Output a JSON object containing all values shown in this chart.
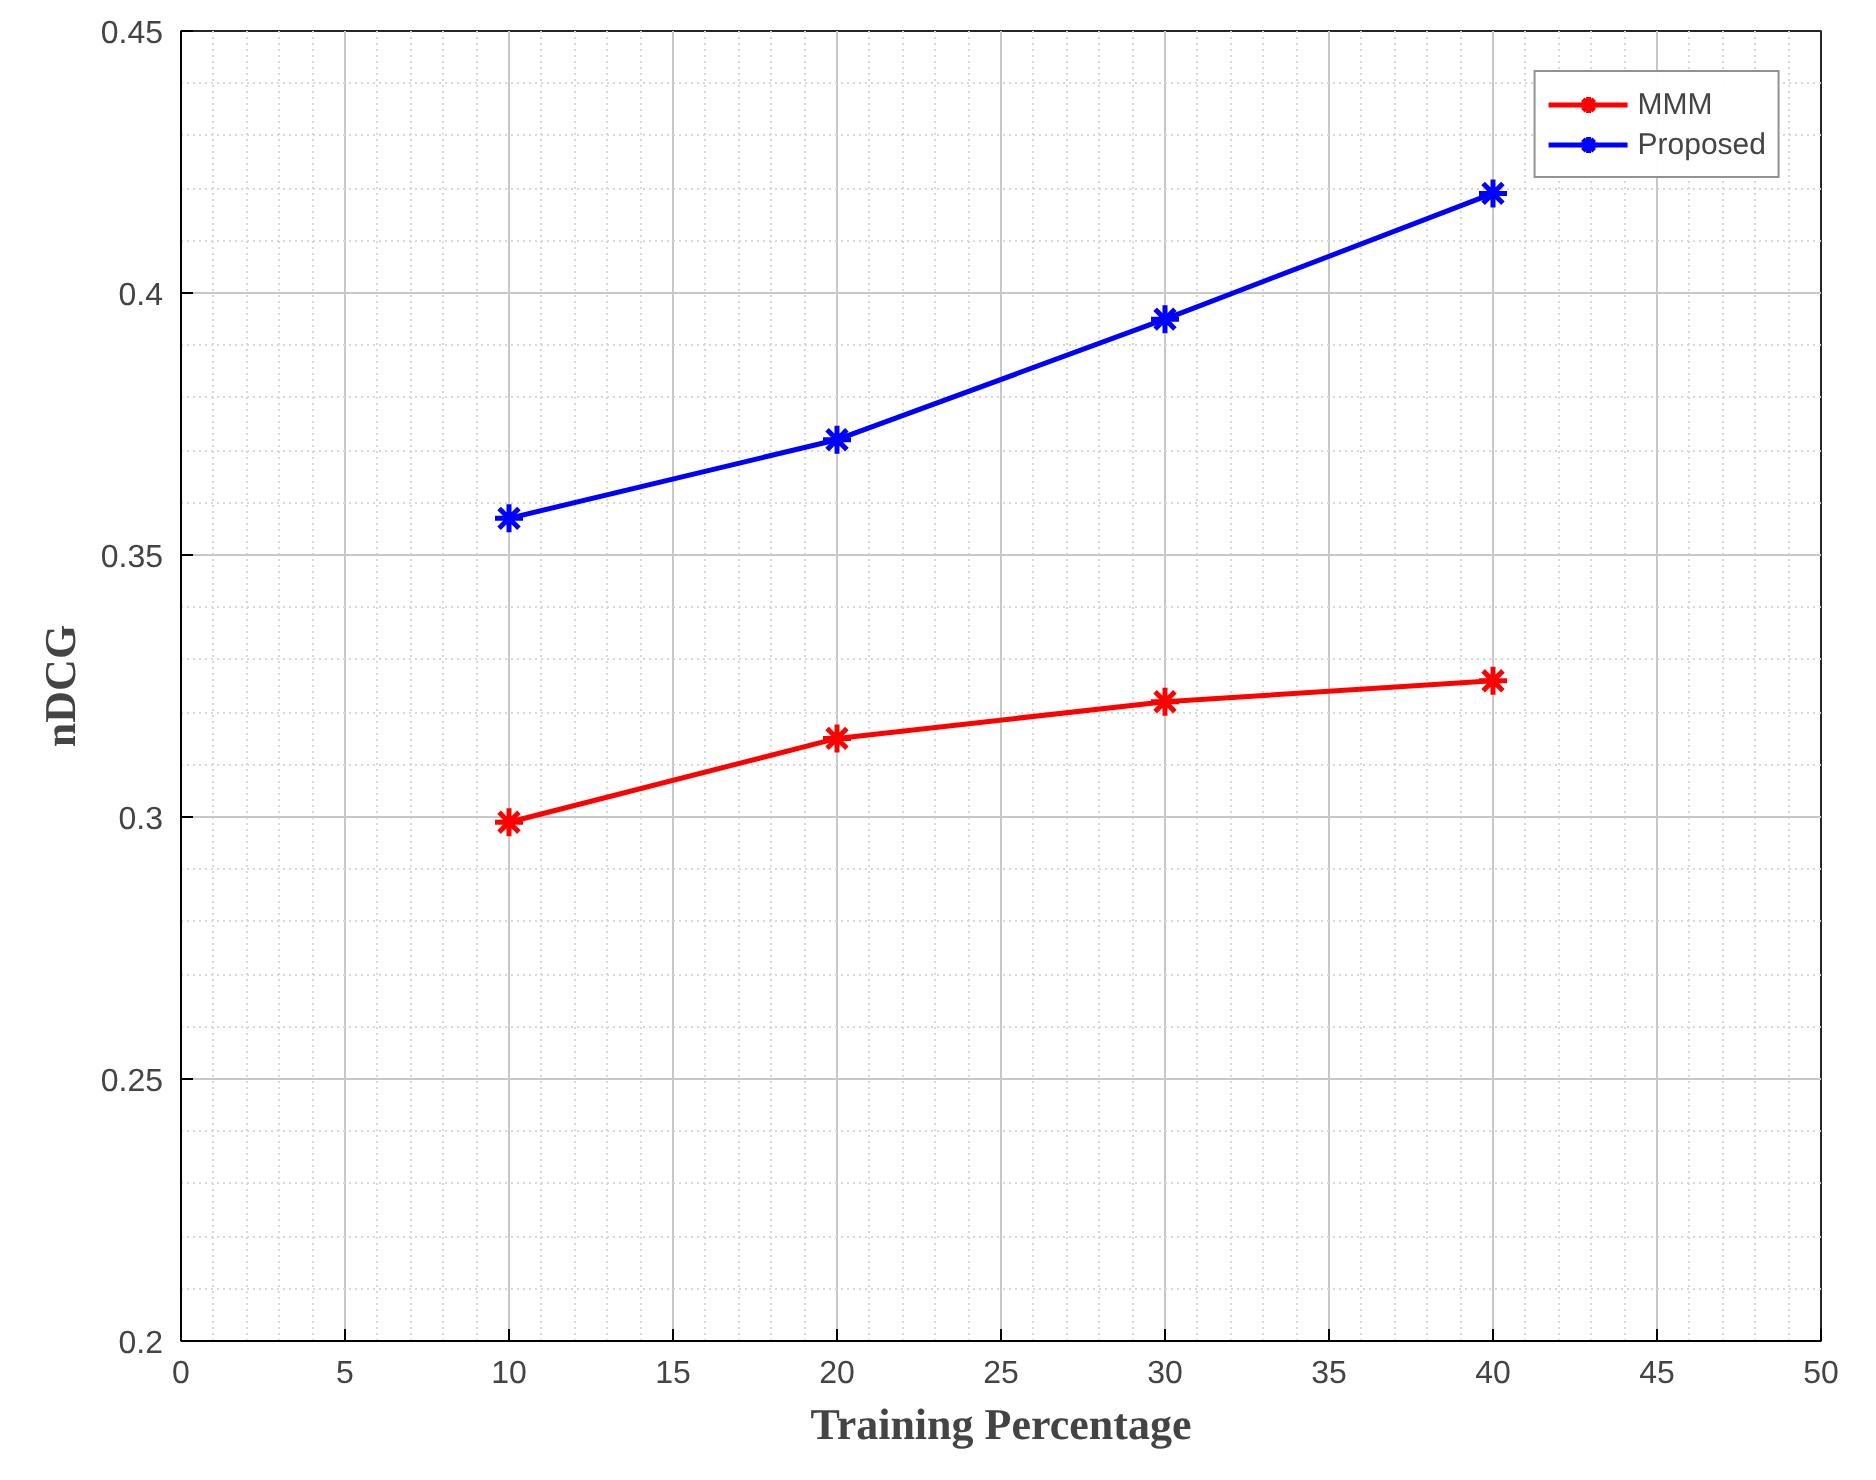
{
  "chart_data": {
    "type": "line",
    "xlabel": "Training Percentage",
    "ylabel": "nDCG",
    "x": [
      10,
      20,
      30,
      40
    ],
    "series": [
      {
        "name": "MMM",
        "color": "#ff0000",
        "values": [
          0.299,
          0.315,
          0.322,
          0.326
        ]
      },
      {
        "name": "Proposed",
        "color": "#0000ff",
        "values": [
          0.357,
          0.372,
          0.395,
          0.419
        ]
      }
    ],
    "xlim": [
      0,
      50
    ],
    "ylim": [
      0.2,
      0.45
    ],
    "xticks": [
      0,
      5,
      10,
      15,
      20,
      25,
      30,
      35,
      40,
      45,
      50
    ],
    "yticks": [
      0.2,
      0.25,
      0.3,
      0.35,
      0.4,
      0.45
    ],
    "grid": true,
    "legend": "top right",
    "marker": "cross",
    "line_style": "solid"
  }
}
